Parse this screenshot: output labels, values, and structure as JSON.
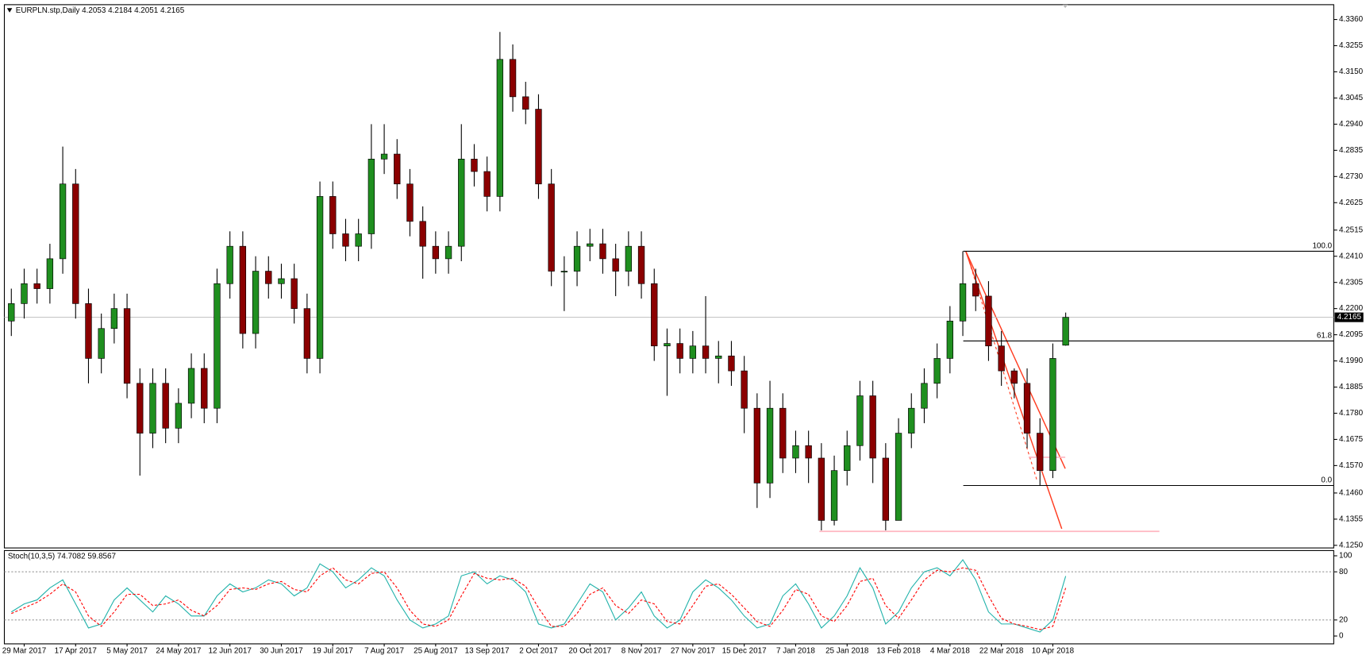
{
  "chart_data": {
    "type": "candlestick",
    "title": "EURPLN.stp,Daily  4.2053 4.2184 4.2051 4.2165",
    "categories": [
      null,
      "29 Mar 2017",
      null,
      null,
      null,
      "17 Apr 2017",
      null,
      null,
      null,
      "5 May 2017",
      null,
      null,
      null,
      "24 May 2017",
      null,
      null,
      null,
      "12 Jun 2017",
      null,
      null,
      null,
      "30 Jun 2017",
      null,
      null,
      null,
      "19 Jul 2017",
      null,
      null,
      null,
      "7 Aug 2017",
      null,
      null,
      null,
      "25 Aug 2017",
      null,
      null,
      null,
      "13 Sep 2017",
      null,
      null,
      null,
      "2 Oct 2017",
      null,
      null,
      null,
      "20 Oct 2017",
      null,
      null,
      null,
      "8 Nov 2017",
      null,
      null,
      null,
      "27 Nov 2017",
      null,
      null,
      null,
      "15 Dec 2017",
      null,
      null,
      null,
      "7 Jan 2018",
      null,
      null,
      null,
      "25 Jan 2018",
      null,
      null,
      null,
      "13 Feb 2018",
      null,
      null,
      null,
      "4 Mar 2018",
      null,
      null,
      null,
      "22 Mar 2018",
      null,
      null,
      null,
      "10 Apr 2018",
      null
    ],
    "open": [
      4.215,
      4.222,
      4.23,
      4.228,
      4.24,
      4.27,
      4.222,
      4.2,
      4.212,
      4.22,
      4.19,
      4.17,
      4.19,
      4.172,
      4.182,
      4.196,
      4.18,
      4.23,
      4.245,
      4.21,
      4.235,
      4.23,
      4.232,
      4.22,
      4.2,
      4.265,
      4.25,
      4.245,
      4.25,
      4.28,
      4.282,
      4.27,
      4.255,
      4.245,
      4.24,
      4.245,
      4.28,
      4.275,
      4.265,
      4.32,
      4.305,
      4.3,
      4.27,
      4.235,
      4.235,
      4.245,
      4.246,
      4.24,
      4.235,
      4.245,
      4.23,
      4.205,
      4.206,
      4.2,
      4.205,
      4.2,
      4.201,
      4.195,
      4.18,
      4.15,
      4.18,
      4.16,
      4.165,
      4.16,
      4.135,
      4.155,
      4.165,
      4.185,
      4.16,
      4.135,
      4.17,
      4.18,
      4.19,
      4.2,
      4.215,
      4.23,
      4.225,
      4.205,
      4.195,
      4.19,
      4.17,
      4.155,
      4.2053
    ],
    "high": [
      4.228,
      4.236,
      4.236,
      4.246,
      4.285,
      4.276,
      4.228,
      4.218,
      4.226,
      4.226,
      4.196,
      4.196,
      4.196,
      4.188,
      4.202,
      4.202,
      4.236,
      4.251,
      4.251,
      4.241,
      4.241,
      4.238,
      4.238,
      4.226,
      4.271,
      4.271,
      4.256,
      4.256,
      4.294,
      4.294,
      4.288,
      4.276,
      4.261,
      4.251,
      4.251,
      4.294,
      4.286,
      4.281,
      4.331,
      4.326,
      4.311,
      4.306,
      4.276,
      4.241,
      4.251,
      4.252,
      4.252,
      4.246,
      4.251,
      4.251,
      4.236,
      4.212,
      4.212,
      4.211,
      4.225,
      4.207,
      4.207,
      4.201,
      4.186,
      4.191,
      4.186,
      4.171,
      4.171,
      4.166,
      4.161,
      4.171,
      4.191,
      4.191,
      4.166,
      4.176,
      4.186,
      4.196,
      4.206,
      4.221,
      4.243,
      4.236,
      4.231,
      4.211,
      4.196,
      4.196,
      4.176,
      4.206,
      4.2184
    ],
    "low": [
      4.209,
      4.216,
      4.222,
      4.222,
      4.234,
      4.216,
      4.19,
      4.194,
      4.206,
      4.184,
      4.153,
      4.164,
      4.166,
      4.166,
      4.176,
      4.174,
      4.174,
      4.224,
      4.204,
      4.204,
      4.224,
      4.224,
      4.214,
      4.194,
      4.194,
      4.244,
      4.239,
      4.239,
      4.244,
      4.274,
      4.264,
      4.249,
      4.232,
      4.234,
      4.234,
      4.239,
      4.269,
      4.259,
      4.259,
      4.299,
      4.294,
      4.264,
      4.229,
      4.219,
      4.229,
      4.239,
      4.234,
      4.225,
      4.229,
      4.224,
      4.199,
      4.185,
      4.194,
      4.194,
      4.194,
      4.19,
      4.189,
      4.17,
      4.14,
      4.144,
      4.154,
      4.154,
      4.15,
      4.131,
      4.133,
      4.149,
      4.159,
      4.15,
      4.131,
      4.135,
      4.164,
      4.174,
      4.184,
      4.194,
      4.209,
      4.219,
      4.199,
      4.189,
      4.184,
      4.164,
      4.149,
      4.152,
      4.2051
    ],
    "close": [
      4.222,
      4.23,
      4.228,
      4.24,
      4.27,
      4.222,
      4.2,
      4.212,
      4.22,
      4.19,
      4.17,
      4.19,
      4.172,
      4.182,
      4.196,
      4.18,
      4.23,
      4.245,
      4.21,
      4.235,
      4.23,
      4.232,
      4.22,
      4.2,
      4.265,
      4.25,
      4.245,
      4.25,
      4.28,
      4.282,
      4.27,
      4.255,
      4.245,
      4.24,
      4.245,
      4.28,
      4.275,
      4.265,
      4.32,
      4.305,
      4.3,
      4.27,
      4.235,
      4.235,
      4.245,
      4.246,
      4.24,
      4.235,
      4.245,
      4.23,
      4.205,
      4.206,
      4.2,
      4.205,
      4.2,
      4.201,
      4.195,
      4.18,
      4.15,
      4.18,
      4.16,
      4.165,
      4.16,
      4.135,
      4.155,
      4.165,
      4.185,
      4.16,
      4.135,
      4.17,
      4.18,
      4.19,
      4.2,
      4.215,
      4.23,
      4.225,
      4.205,
      4.195,
      4.19,
      4.17,
      4.155,
      4.2,
      4.2165
    ],
    "up_color": "#1f8f1f",
    "down_color": "#8b0000",
    "ylim": [
      4.125,
      4.336
    ],
    "yticks": [
      {
        "value": 4.336,
        "label": "4.3360"
      },
      {
        "value": 4.3255,
        "label": "4.3255"
      },
      {
        "value": 4.315,
        "label": "4.3150"
      },
      {
        "value": 4.3045,
        "label": "4.3045"
      },
      {
        "value": 4.294,
        "label": "4.2940"
      },
      {
        "value": 4.2835,
        "label": "4.2835"
      },
      {
        "value": 4.273,
        "label": "4.2730"
      },
      {
        "value": 4.2625,
        "label": "4.2625"
      },
      {
        "value": 4.2515,
        "label": "4.2515"
      },
      {
        "value": 4.241,
        "label": "4.2410"
      },
      {
        "value": 4.2305,
        "label": "4.2305"
      },
      {
        "value": 4.22,
        "label": "4.2200"
      },
      {
        "value": 4.2095,
        "label": "4.2095"
      },
      {
        "value": 4.199,
        "label": "4.1990"
      },
      {
        "value": 4.1885,
        "label": "4.1885"
      },
      {
        "value": 4.178,
        "label": "4.1780"
      },
      {
        "value": 4.1675,
        "label": "4.1675"
      },
      {
        "value": 4.157,
        "label": "4.1570"
      },
      {
        "value": 4.146,
        "label": "4.1460"
      },
      {
        "value": 4.1355,
        "label": "4.1355"
      },
      {
        "value": 4.125,
        "label": "4.1250"
      }
    ],
    "last_price": 4.2165,
    "levels": [
      {
        "label": "100.0",
        "value": 4.243
      },
      {
        "label": "61.8",
        "value": 4.207
      },
      {
        "label": "0.0",
        "value": 4.149
      }
    ],
    "indicator": {
      "title": "Stoch(10,3,5) 74.7082 59.8567",
      "ylim": [
        0,
        100
      ],
      "yticks": [
        100,
        80,
        20,
        0
      ],
      "series": [
        {
          "color": "#20b2aa",
          "values": [
            30,
            40,
            45,
            60,
            70,
            40,
            10,
            15,
            45,
            60,
            45,
            30,
            50,
            40,
            25,
            25,
            50,
            65,
            55,
            60,
            70,
            65,
            50,
            60,
            90,
            80,
            60,
            70,
            85,
            75,
            45,
            20,
            10,
            15,
            25,
            75,
            80,
            65,
            75,
            70,
            55,
            15,
            10,
            15,
            40,
            65,
            55,
            20,
            35,
            55,
            25,
            10,
            20,
            55,
            70,
            60,
            45,
            25,
            10,
            15,
            50,
            65,
            40,
            10,
            25,
            50,
            85,
            60,
            15,
            30,
            60,
            80,
            85,
            75,
            95,
            70,
            30,
            15,
            15,
            10,
            5,
            20,
            74.7082
          ]
        },
        {
          "color": "#ff0000",
          "values": [
            28,
            35,
            42,
            52,
            65,
            55,
            25,
            12,
            30,
            52,
            52,
            38,
            40,
            45,
            32,
            25,
            38,
            58,
            60,
            58,
            65,
            68,
            58,
            55,
            75,
            85,
            70,
            65,
            78,
            80,
            60,
            32,
            15,
            12,
            20,
            50,
            78,
            72,
            70,
            72,
            62,
            35,
            12,
            12,
            28,
            52,
            60,
            38,
            28,
            45,
            40,
            18,
            15,
            38,
            62,
            65,
            52,
            35,
            18,
            12,
            32,
            58,
            52,
            25,
            18,
            38,
            68,
            72,
            38,
            22,
            45,
            70,
            82,
            80,
            85,
            82,
            50,
            22,
            15,
            12,
            8,
            12,
            59.8567
          ]
        }
      ]
    }
  }
}
